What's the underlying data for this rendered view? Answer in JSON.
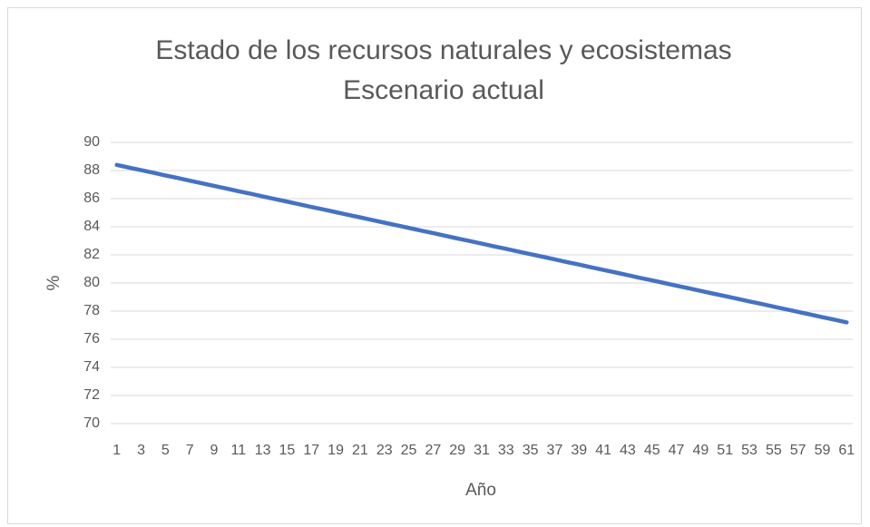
{
  "chart_data": {
    "type": "line",
    "title": "Estado de los recursos naturales y ecosistemas",
    "subtitle": "Escenario actual",
    "x_label": "Año",
    "y_label": "%",
    "categories": [
      1,
      null,
      3,
      null,
      5,
      null,
      7,
      null,
      9,
      null,
      11,
      null,
      13,
      null,
      15,
      null,
      17,
      null,
      19,
      null,
      21,
      null,
      23,
      null,
      25,
      null,
      27,
      null,
      29,
      null,
      31,
      null,
      33,
      null,
      35,
      null,
      37,
      null,
      39,
      null,
      41,
      null,
      43,
      null,
      45,
      null,
      47,
      null,
      49,
      null,
      51,
      null,
      53,
      null,
      55,
      null,
      57,
      null,
      59,
      null,
      61
    ],
    "series": [
      {
        "name": "Estado",
        "color": "#4472c4",
        "values": [
          88.4,
          88.21,
          88.03,
          87.84,
          87.65,
          87.47,
          87.28,
          87.09,
          86.91,
          86.72,
          86.53,
          86.35,
          86.16,
          85.97,
          85.79,
          85.6,
          85.41,
          85.23,
          85.04,
          84.85,
          84.67,
          84.48,
          84.29,
          84.11,
          83.92,
          83.73,
          83.55,
          83.36,
          83.17,
          82.99,
          82.8,
          82.61,
          82.43,
          82.24,
          82.05,
          81.87,
          81.68,
          81.49,
          81.31,
          81.12,
          80.93,
          80.75,
          80.56,
          80.37,
          80.19,
          80.0,
          79.81,
          79.63,
          79.44,
          79.25,
          79.07,
          78.88,
          78.69,
          78.51,
          78.32,
          78.13,
          77.95,
          77.76,
          77.57,
          77.39,
          77.2
        ]
      }
    ],
    "ylim": [
      70,
      90
    ],
    "yticks": [
      70,
      72,
      74,
      76,
      78,
      80,
      82,
      84,
      86,
      88,
      90
    ],
    "grid": true
  }
}
